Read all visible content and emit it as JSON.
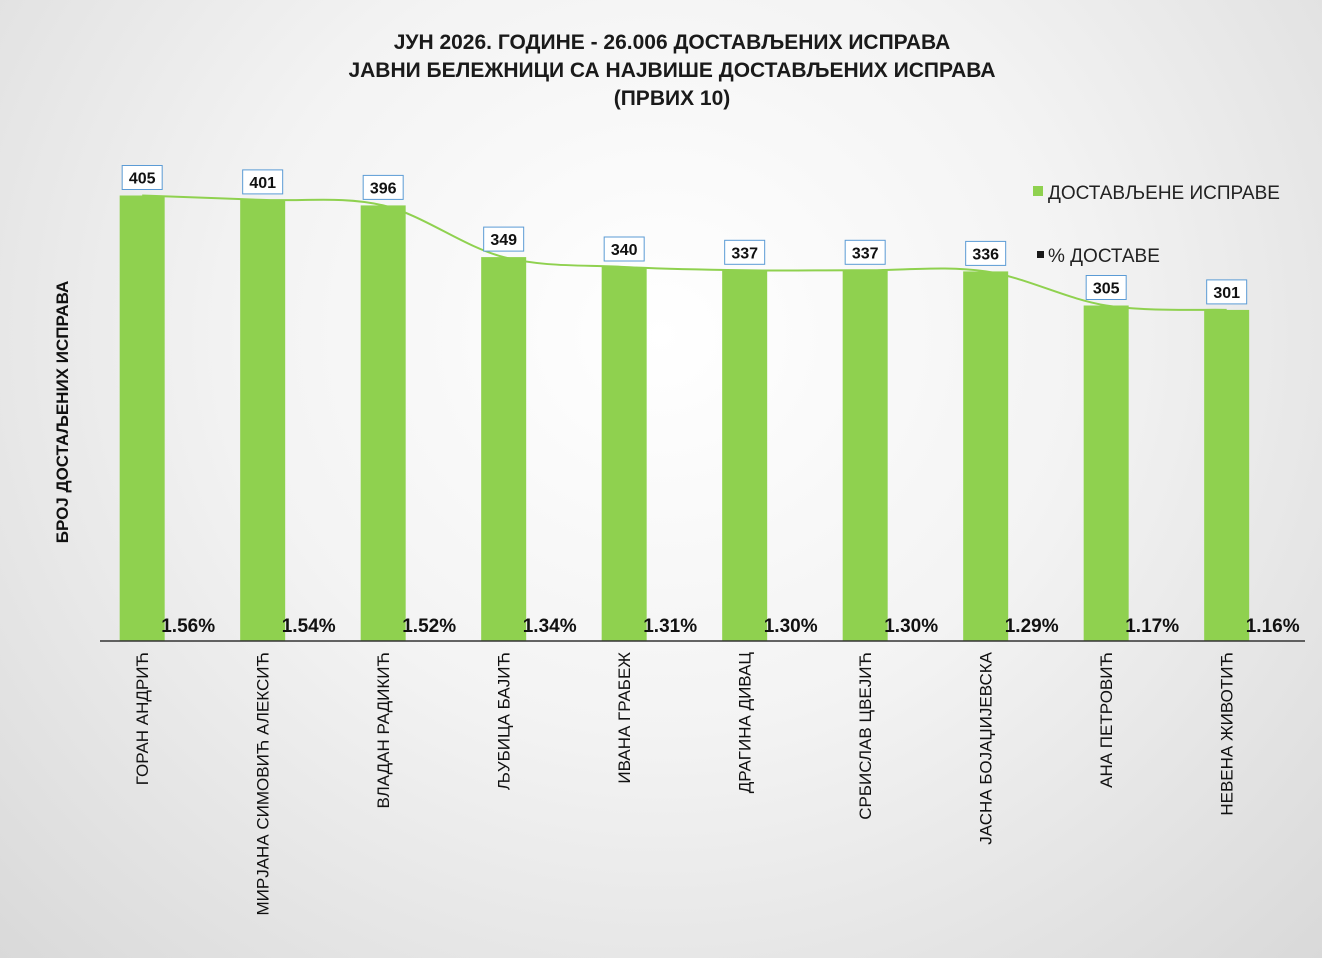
{
  "chart_data": {
    "type": "bar",
    "title": [
      "ЈУН 2026. ГОДИНЕ - 26.006  ДОСТАВЉЕНИХ ИСПРАВА",
      "ЈАВНИ БЕЛЕЖНИЦИ СА НАЈВИШЕ ДОСТАВЉЕНИХ ИСПРАВА",
      "(ПРВИХ 10)"
    ],
    "ylabel": "БРОЈ ДОСТАЉЕНИХ ИСПРАВА",
    "xlabel": "",
    "ylim": [
      0,
      450
    ],
    "grid": false,
    "legend_position": "top-right",
    "categories": [
      "ГОРАН АНДРИЋ",
      "МИРЈАНА СИМОВИЋ АЛЕКСИЋ",
      "ВЛАДАН РАДИКИЋ",
      "ЉУБИЦА БАЈИЋ",
      "ИВАНА ГРАБЕЖ",
      "ДРАГИНА ДИВАЦ",
      "СРБИСЛАВ ЦВЕЈИЋ",
      "ЈАСНА БОЈАЏИЈЕВСКА",
      "АНА ПЕТРОВИЋ",
      "НЕВЕНА ЖИВОТИЋ"
    ],
    "series": [
      {
        "name": "ДОСТАВЉЕНЕ ИСПРАВЕ",
        "color": "#8fd14f",
        "values": [
          405,
          401,
          396,
          349,
          340,
          337,
          337,
          336,
          305,
          301
        ],
        "labels": [
          "405",
          "401",
          "396",
          "349",
          "340",
          "337",
          "337",
          "336",
          "305",
          "301"
        ]
      },
      {
        "name": "% ДОСТАВЕ",
        "color": "#1a1a1a",
        "values": [
          1.56,
          1.54,
          1.52,
          1.34,
          1.31,
          1.3,
          1.3,
          1.29,
          1.17,
          1.16
        ],
        "labels": [
          "1.56%",
          "1.54%",
          "1.52%",
          "1.34%",
          "1.31%",
          "1.30%",
          "1.30%",
          "1.29%",
          "1.17%",
          "1.16%"
        ]
      }
    ],
    "trendline_color": "#8fd14f"
  }
}
